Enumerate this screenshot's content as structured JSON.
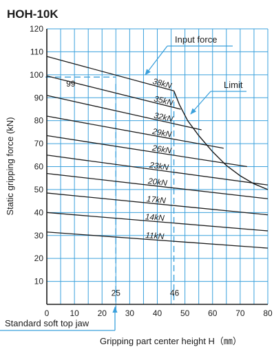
{
  "colors": {
    "grid": "#3aa0dc",
    "series": "#1a1a1a",
    "arrow": "#3aa0dc",
    "axis": "#1a1a1a"
  },
  "chart_data": {
    "type": "line",
    "title": "HOH-10K",
    "xlabel": "Gripping part center height H（㎜）",
    "ylabel": "Static gripping force (kN)",
    "xlim": [
      0,
      80
    ],
    "ylim": [
      0,
      120
    ],
    "xticks": [
      0,
      10,
      20,
      30,
      40,
      50,
      60,
      70,
      80
    ],
    "yticks": [
      10,
      20,
      30,
      40,
      50,
      60,
      70,
      80,
      90,
      100,
      110,
      120
    ],
    "grid": true,
    "series": [
      {
        "name": "38kN",
        "x": [
          0,
          46
        ],
        "y": [
          108,
          93
        ]
      },
      {
        "name": "35kN",
        "x": [
          0,
          48.5
        ],
        "y": [
          99.5,
          85
        ]
      },
      {
        "name": "32kN",
        "x": [
          0,
          56
        ],
        "y": [
          91,
          76
        ]
      },
      {
        "name": "29kN",
        "x": [
          0,
          64
        ],
        "y": [
          82,
          68
        ]
      },
      {
        "name": "26kN",
        "x": [
          0,
          72.5
        ],
        "y": [
          73.5,
          60
        ]
      },
      {
        "name": "23kN",
        "x": [
          0,
          80
        ],
        "y": [
          65,
          52
        ]
      },
      {
        "name": "20kN",
        "x": [
          0,
          80
        ],
        "y": [
          57,
          46
        ]
      },
      {
        "name": "17kN",
        "x": [
          0,
          80
        ],
        "y": [
          48.5,
          39
        ]
      },
      {
        "name": "14kN",
        "x": [
          0,
          80
        ],
        "y": [
          40,
          32
        ]
      },
      {
        "name": "11kN",
        "x": [
          0,
          80
        ],
        "y": [
          31.5,
          24.5
        ]
      }
    ],
    "limit_curve": {
      "name": "Limit",
      "x": [
        46,
        48,
        51,
        55,
        60,
        65,
        70,
        75,
        80
      ],
      "y": [
        93,
        87,
        80,
        73.5,
        66.5,
        60.5,
        56,
        52.5,
        50
      ]
    },
    "annotations": {
      "input_force": "Input force",
      "limit": "Limit",
      "value_99": "99",
      "mark_25": "25",
      "mark_46": "46",
      "soft_jaw": "Standard soft top jaw"
    },
    "reference_lines": {
      "x_25": 25,
      "x_46": 46,
      "y_99": 99
    }
  }
}
